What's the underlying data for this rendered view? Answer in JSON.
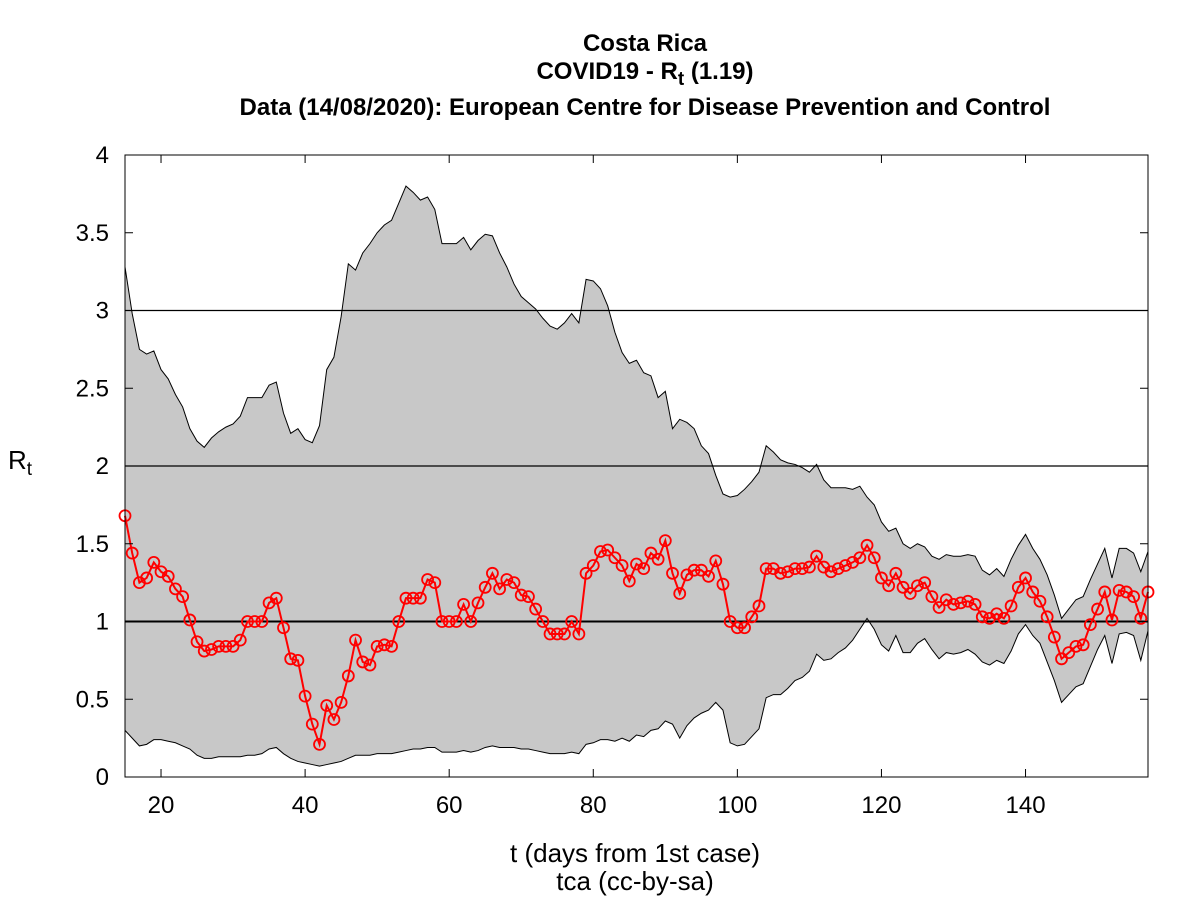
{
  "title": {
    "country": "Costa Rica",
    "metric_prefix": "COVID19 - R",
    "metric_sub": "t",
    "metric_suffix": " (1.19)",
    "data_line": "Data (14/08/2020): European Centre for Disease Prevention and Control"
  },
  "axes": {
    "ylabel_main": "R",
    "ylabel_sub": "t",
    "xlabel": "t (days from 1st case)",
    "credit": "tca (cc-by-sa)",
    "xticks": [
      20,
      40,
      60,
      80,
      100,
      120,
      140
    ],
    "yticks": [
      "0",
      "0.5",
      "1",
      "1.5",
      "2",
      "2.5",
      "3",
      "3.5",
      "4"
    ]
  },
  "colors": {
    "series": "#ff0000",
    "band": "#c8c8c8",
    "reference": "#000000"
  },
  "chart_data": {
    "type": "line",
    "xlim": [
      15,
      157
    ],
    "ylim": [
      0,
      4
    ],
    "grid": false,
    "reference_lines": [
      1,
      2,
      3
    ],
    "series": [
      {
        "x": [
          15,
          16,
          17,
          18,
          19,
          20,
          21,
          22,
          23,
          24,
          25,
          26,
          27,
          28,
          29,
          30,
          31,
          32,
          33,
          34,
          35,
          36,
          37,
          38,
          39,
          40,
          41,
          42,
          43,
          44,
          45,
          46,
          47,
          48,
          49,
          50,
          51,
          52,
          53,
          54,
          55,
          56,
          57,
          58,
          59,
          60,
          61,
          62,
          63,
          64,
          65,
          66,
          67,
          68,
          69,
          70,
          71,
          72,
          73,
          74,
          75,
          76,
          77,
          78,
          79,
          80,
          81,
          82,
          83,
          84,
          85,
          86,
          87,
          88,
          89,
          90,
          91,
          92,
          93,
          94,
          95,
          96,
          97,
          98,
          99,
          100,
          101,
          102,
          103,
          104,
          105,
          106,
          107,
          108,
          109,
          110,
          111,
          112,
          113,
          114,
          115,
          116,
          117,
          118,
          119,
          120,
          121,
          122,
          123,
          124,
          125,
          126,
          127,
          128,
          129,
          130,
          131,
          132,
          133,
          134,
          135,
          136,
          137,
          138,
          139,
          140,
          141,
          142,
          143,
          144,
          145,
          146,
          147,
          148,
          149,
          150,
          151,
          152,
          153,
          154,
          155,
          156,
          157
        ],
        "y": [
          1.68,
          1.44,
          1.25,
          1.28,
          1.38,
          1.32,
          1.29,
          1.21,
          1.16,
          1.01,
          0.87,
          0.81,
          0.82,
          0.84,
          0.84,
          0.84,
          0.88,
          1.0,
          1.0,
          1.0,
          1.12,
          1.15,
          0.96,
          0.76,
          0.75,
          0.52,
          0.34,
          0.21,
          0.46,
          0.37,
          0.48,
          0.65,
          0.88,
          0.74,
          0.72,
          0.84,
          0.85,
          0.84,
          1.0,
          1.15,
          1.15,
          1.15,
          1.27,
          1.25,
          1.0,
          1.0,
          1.0,
          1.11,
          1.0,
          1.12,
          1.22,
          1.31,
          1.21,
          1.27,
          1.25,
          1.17,
          1.16,
          1.08,
          1.0,
          0.92,
          0.92,
          0.92,
          1.0,
          0.92,
          1.31,
          1.36,
          1.45,
          1.46,
          1.41,
          1.36,
          1.26,
          1.37,
          1.34,
          1.44,
          1.4,
          1.52,
          1.31,
          1.18,
          1.3,
          1.33,
          1.33,
          1.29,
          1.39,
          1.24,
          1.0,
          0.96,
          0.96,
          1.03,
          1.1,
          1.34,
          1.34,
          1.31,
          1.32,
          1.34,
          1.34,
          1.35,
          1.42,
          1.35,
          1.32,
          1.34,
          1.36,
          1.38,
          1.41,
          1.49,
          1.41,
          1.28,
          1.23,
          1.31,
          1.22,
          1.18,
          1.23,
          1.25,
          1.16,
          1.09,
          1.14,
          1.11,
          1.12,
          1.13,
          1.11,
          1.03,
          1.02,
          1.05,
          1.02,
          1.1,
          1.22,
          1.28,
          1.19,
          1.13,
          1.03,
          0.9,
          0.76,
          0.8,
          0.84,
          0.85,
          0.98,
          1.08,
          1.19,
          1.01,
          1.2,
          1.19,
          1.16,
          1.02,
          1.19
        ],
        "lower": [
          0.3,
          0.25,
          0.2,
          0.21,
          0.24,
          0.24,
          0.23,
          0.22,
          0.2,
          0.18,
          0.14,
          0.12,
          0.12,
          0.13,
          0.13,
          0.13,
          0.13,
          0.14,
          0.14,
          0.15,
          0.18,
          0.19,
          0.15,
          0.12,
          0.1,
          0.09,
          0.08,
          0.07,
          0.08,
          0.09,
          0.1,
          0.12,
          0.14,
          0.14,
          0.14,
          0.15,
          0.15,
          0.15,
          0.16,
          0.17,
          0.18,
          0.18,
          0.19,
          0.19,
          0.16,
          0.16,
          0.16,
          0.17,
          0.16,
          0.17,
          0.19,
          0.2,
          0.19,
          0.19,
          0.19,
          0.18,
          0.18,
          0.17,
          0.16,
          0.15,
          0.15,
          0.15,
          0.16,
          0.15,
          0.21,
          0.22,
          0.24,
          0.24,
          0.23,
          0.25,
          0.23,
          0.27,
          0.26,
          0.3,
          0.31,
          0.36,
          0.34,
          0.25,
          0.33,
          0.38,
          0.41,
          0.43,
          0.48,
          0.43,
          0.22,
          0.2,
          0.21,
          0.26,
          0.31,
          0.51,
          0.53,
          0.53,
          0.57,
          0.62,
          0.64,
          0.68,
          0.79,
          0.75,
          0.76,
          0.8,
          0.83,
          0.88,
          0.95,
          1.02,
          0.95,
          0.85,
          0.81,
          0.91,
          0.8,
          0.8,
          0.86,
          0.89,
          0.82,
          0.76,
          0.8,
          0.79,
          0.8,
          0.82,
          0.79,
          0.74,
          0.72,
          0.75,
          0.73,
          0.81,
          0.92,
          0.98,
          0.91,
          0.86,
          0.74,
          0.62,
          0.48,
          0.53,
          0.58,
          0.6,
          0.71,
          0.82,
          0.91,
          0.73,
          0.92,
          0.93,
          0.91,
          0.75,
          0.94
        ],
        "upper": [
          3.28,
          2.98,
          2.75,
          2.72,
          2.74,
          2.62,
          2.56,
          2.46,
          2.38,
          2.24,
          2.16,
          2.12,
          2.18,
          2.22,
          2.25,
          2.27,
          2.32,
          2.44,
          2.44,
          2.44,
          2.52,
          2.54,
          2.34,
          2.21,
          2.24,
          2.17,
          2.15,
          2.26,
          2.62,
          2.7,
          2.96,
          3.3,
          3.26,
          3.37,
          3.43,
          3.5,
          3.55,
          3.58,
          3.69,
          3.8,
          3.76,
          3.71,
          3.73,
          3.65,
          3.43,
          3.43,
          3.43,
          3.47,
          3.39,
          3.45,
          3.49,
          3.48,
          3.37,
          3.28,
          3.17,
          3.09,
          3.05,
          3.01,
          2.95,
          2.9,
          2.88,
          2.92,
          2.98,
          2.92,
          3.2,
          3.19,
          3.14,
          3.03,
          2.86,
          2.73,
          2.66,
          2.68,
          2.6,
          2.58,
          2.44,
          2.48,
          2.24,
          2.3,
          2.28,
          2.24,
          2.13,
          2.08,
          1.94,
          1.82,
          1.8,
          1.81,
          1.85,
          1.9,
          1.96,
          2.13,
          2.09,
          2.04,
          2.02,
          2.01,
          1.99,
          1.96,
          2.01,
          1.91,
          1.86,
          1.86,
          1.86,
          1.85,
          1.87,
          1.8,
          1.75,
          1.64,
          1.58,
          1.6,
          1.5,
          1.47,
          1.5,
          1.48,
          1.42,
          1.4,
          1.43,
          1.42,
          1.42,
          1.43,
          1.42,
          1.33,
          1.3,
          1.34,
          1.29,
          1.4,
          1.49,
          1.56,
          1.47,
          1.4,
          1.3,
          1.17,
          1.02,
          1.08,
          1.14,
          1.16,
          1.27,
          1.37,
          1.47,
          1.28,
          1.47,
          1.47,
          1.44,
          1.32,
          1.45
        ]
      }
    ]
  }
}
